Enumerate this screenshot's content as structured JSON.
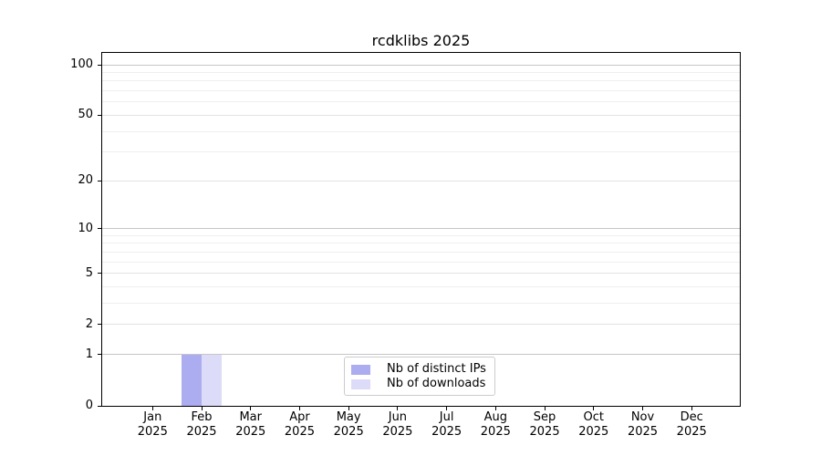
{
  "chart_data": {
    "type": "bar",
    "title": "rcdklibs 2025",
    "x": {
      "months": [
        "Jan",
        "Feb",
        "Mar",
        "Apr",
        "May",
        "Jun",
        "Jul",
        "Aug",
        "Sep",
        "Oct",
        "Nov",
        "Dec"
      ],
      "year": "2025"
    },
    "series": [
      {
        "name": "Nb of distinct IPs",
        "color": "#acacf0",
        "values": [
          0,
          1,
          0,
          0,
          0,
          0,
          0,
          0,
          0,
          0,
          0,
          0
        ]
      },
      {
        "name": "Nb of downloads",
        "color": "#dcdcf8",
        "values": [
          0,
          1,
          0,
          0,
          0,
          0,
          0,
          0,
          0,
          0,
          0,
          0
        ]
      }
    ],
    "y_axis": {
      "scale": "log1p",
      "lim": [
        0,
        100
      ],
      "major_ticks": [
        0,
        1,
        2,
        5,
        10,
        20,
        50,
        100
      ],
      "decade_gridlines": [
        1,
        10,
        100
      ],
      "minor_gridlines": [
        3,
        4,
        6,
        7,
        8,
        9,
        30,
        40,
        60,
        70,
        80,
        90
      ]
    },
    "grid": "horizontal",
    "legend_position": "lower center",
    "colors": {
      "axis": "#000000",
      "text": "#000000",
      "grid_decade": "#c6c6c6",
      "grid_major": "#e2e2e2",
      "grid_minor": "#efefef",
      "legend_border": "#cccccc",
      "background": "#ffffff"
    }
  }
}
